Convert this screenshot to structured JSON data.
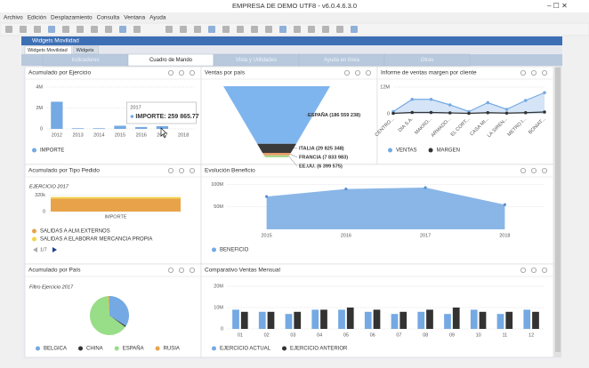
{
  "window": {
    "title": "EMPRESA DE DEMO UTF8 - v6.0.4.6.3.0"
  },
  "menu": [
    "Archivo",
    "Edición",
    "Desplazamiento",
    "Consulta",
    "Ventana",
    "Ayuda"
  ],
  "inner_window": {
    "title": "Widgets Movilidad",
    "tabs": [
      "Widgets Movilidad",
      "Widgets"
    ]
  },
  "tabs": [
    "Indicadores",
    "Cuadro de Mando",
    "Vista y Utilidades",
    "Ayuda en línea",
    "Otras"
  ],
  "chart_data": [
    {
      "type": "bar",
      "title": "Acumulado por Ejercicio",
      "categories": [
        "2012",
        "2013",
        "2014",
        "2015",
        "2016",
        "2017",
        "2018"
      ],
      "series": [
        {
          "name": "IMPORTE",
          "color": "#74a9e3",
          "values": [
            2600000,
            60000,
            60000,
            300000,
            180000,
            259865.77,
            null
          ]
        }
      ],
      "ylim": [
        0,
        4000000
      ],
      "yticks": [
        0,
        {
          "value": 2000000,
          "label": "2M"
        },
        {
          "value": 4000000,
          "label": "4M"
        }
      ],
      "grid": true,
      "tooltip": {
        "title": "2017",
        "text": "IMPORTE: 259 865.77"
      }
    },
    {
      "type": "funnel",
      "title": "Ventas por país",
      "values": [
        186559238,
        29825348,
        7833983,
        6399575
      ],
      "value_labels": [
        "ESPAÑA (186 559 238)",
        "ITALIA (29 825 348)",
        "FRANCIA (7 833 983)",
        "EE.UU. (6 399 575)"
      ],
      "colors": [
        "#7fb5ee",
        "#3a3a3a",
        "#e99a6a",
        "#a9d98a"
      ]
    },
    {
      "type": "line",
      "title": "Informe de ventas margen por cliente",
      "categories": [
        "CENTRO...",
        "DIA S.A.",
        "MAKRO...",
        "ARMADO...",
        "EL CORT...",
        "CASA MI...",
        "LA SIREN...",
        "METRO I...",
        "BONIAT..."
      ],
      "series": [
        {
          "name": "VENTAS",
          "color": "#74a9e3",
          "values": [
            1000000,
            6500000,
            6500000,
            4000000,
            1000000,
            5000000,
            2000000,
            6000000,
            9500000
          ]
        },
        {
          "name": "MARGEN",
          "color": "#333333",
          "values": [
            200000,
            600000,
            600000,
            400000,
            200000,
            500000,
            300000,
            500000,
            800000
          ]
        }
      ],
      "ylim": [
        0,
        12000000
      ],
      "yticks": [
        0,
        {
          "value": 12000000,
          "label": "12M"
        }
      ],
      "grid": true
    },
    {
      "type": "stacked_bar",
      "title": "Acumulado por Tipo Pedido",
      "subtitle": "EJERCICIO 2017",
      "categories": [
        "IMPORTE"
      ],
      "series": [
        {
          "name": "SALIDAS A ALM.EXTERNOS",
          "color": "#e8a34a",
          "values": [
            250000
          ]
        },
        {
          "name": "SALIDAS A ELABORAR MERCANCIA PROPIA",
          "color": "#f3d34a",
          "values": [
            30000
          ]
        }
      ],
      "ylim": [
        0,
        360000
      ],
      "yticks": [
        0,
        {
          "value": 320000,
          "label": "320k"
        }
      ],
      "grid": true,
      "pager": "1/7"
    },
    {
      "type": "area",
      "title": "Evolución Beneficio",
      "categories": [
        "2015",
        "2016",
        "2017",
        "2018"
      ],
      "series": [
        {
          "name": "BENEFICIO",
          "color": "#74a9e3",
          "values": [
            73000000,
            90000000,
            93000000,
            55000000
          ]
        }
      ],
      "ylim": [
        0,
        105000000
      ],
      "yticks": [
        {
          "value": 50000000,
          "label": "50M"
        },
        {
          "value": 100000000,
          "label": "100M"
        }
      ],
      "grid": true
    },
    {
      "type": "pie",
      "title": "Acumulado por País",
      "subtitle": "Filtro Ejercicio 2017",
      "categories": [
        "BELGICA",
        "CHINA",
        "ESPAÑA",
        "RUSIA"
      ],
      "values": [
        34,
        1,
        64,
        1
      ],
      "colors": [
        "#74a9e3",
        "#333333",
        "#98dd87",
        "#e8a34a"
      ]
    },
    {
      "type": "grouped_bar",
      "title": "Comparativo Ventas Mensual",
      "categories": [
        "01",
        "02",
        "03",
        "04",
        "05",
        "06",
        "07",
        "08",
        "09",
        "10",
        "11",
        "12"
      ],
      "series": [
        {
          "name": "EJERCICIO ACTUAL",
          "color": "#74a9e3",
          "values": [
            9000000,
            8000000,
            7000000,
            9000000,
            9000000,
            8000000,
            7000000,
            8000000,
            7000000,
            9000000,
            7000000,
            9000000
          ]
        },
        {
          "name": "EJERCICIO ANTERIOR",
          "color": "#333333",
          "values": [
            8000000,
            8000000,
            8000000,
            9000000,
            10000000,
            9000000,
            8000000,
            9000000,
            10000000,
            8000000,
            8000000,
            8000000
          ]
        }
      ],
      "ylim": [
        0,
        20000000
      ],
      "yticks": [
        0,
        {
          "value": 10000000,
          "label": "10M"
        },
        {
          "value": 20000000,
          "label": "20M"
        }
      ],
      "grid": true
    }
  ]
}
